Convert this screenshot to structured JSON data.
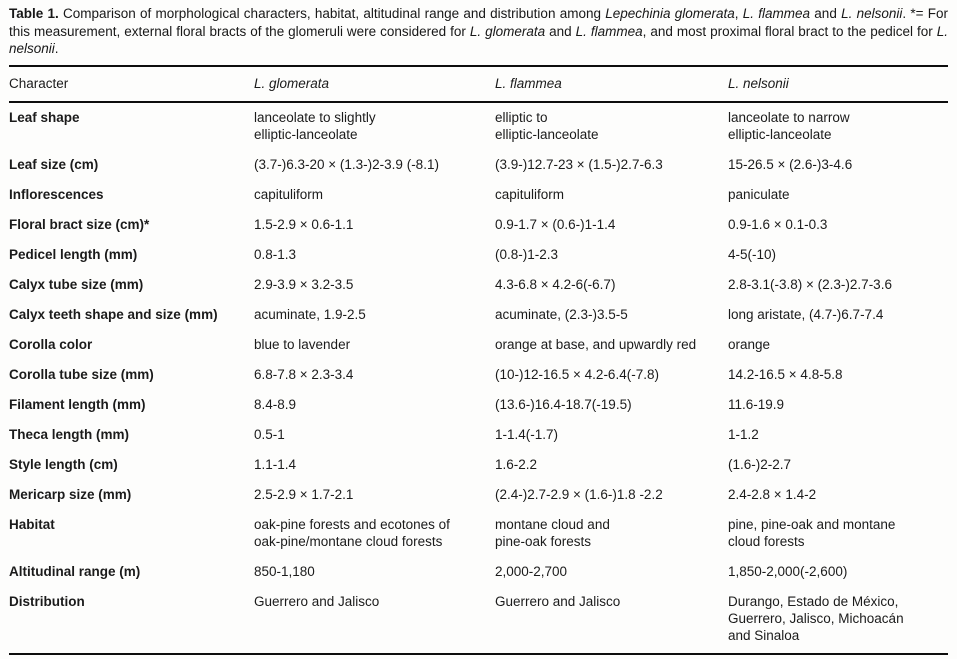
{
  "caption": {
    "label": "Table 1.",
    "intro": " Comparison of morphological characters, habitat, altitudinal range and distribution among ",
    "species1": "Lepechinia glomerata",
    "comma1": ", ",
    "species2": "L. flammea",
    "and1": " and ",
    "species3": "L. nelsonii",
    "note1": ". *= For this measurement, external floral bracts of the glomeruli were considered for ",
    "species4": "L. glomerata",
    "and2": " and ",
    "species5": "L. flammea",
    "note2": ", and most proximal floral bract to the pedicel for ",
    "species6": "L. nelsonii",
    "end": "."
  },
  "table": {
    "headers": {
      "character": "Character",
      "glomerata": "L. glomerata",
      "flammea": "L. flammea",
      "nelsonii": "L. nelsonii"
    },
    "rows": [
      {
        "character": "Leaf shape",
        "glomerata": "lanceolate to slightly\nelliptic-lanceolate",
        "flammea": "elliptic to\nelliptic-lanceolate",
        "nelsonii": "lanceolate to narrow\nelliptic-lanceolate"
      },
      {
        "character": "Leaf size (cm)",
        "glomerata": "(3.7-)6.3-20 × (1.3-)2-3.9 (-8.1)",
        "flammea": "(3.9-)12.7-23 × (1.5-)2.7-6.3",
        "nelsonii": "15-26.5 × (2.6-)3-4.6"
      },
      {
        "character": "Inflorescences",
        "glomerata": "capituliform",
        "flammea": "capituliform",
        "nelsonii": "paniculate"
      },
      {
        "character": "Floral bract size (cm)*",
        "glomerata": "1.5-2.9 × 0.6-1.1",
        "flammea": "0.9-1.7 × (0.6-)1-1.4",
        "nelsonii": "0.9-1.6 × 0.1-0.3"
      },
      {
        "character": "Pedicel length (mm)",
        "glomerata": "0.8-1.3",
        "flammea": "(0.8-)1-2.3",
        "nelsonii": "4-5(-10)"
      },
      {
        "character": "Calyx tube size (mm)",
        "glomerata": "2.9-3.9 × 3.2-3.5",
        "flammea": "4.3-6.8 × 4.2-6(-6.7)",
        "nelsonii": "2.8-3.1(-3.8) × (2.3-)2.7-3.6"
      },
      {
        "character": "Calyx teeth shape and size (mm)",
        "glomerata": "acuminate, 1.9-2.5",
        "flammea": "acuminate, (2.3-)3.5-5",
        "nelsonii": "long aristate, (4.7-)6.7-7.4"
      },
      {
        "character": "Corolla color",
        "glomerata": "blue to lavender",
        "flammea": "orange at base, and upwardly red",
        "nelsonii": "orange"
      },
      {
        "character": "Corolla tube size (mm)",
        "glomerata": "6.8-7.8 × 2.3-3.4",
        "flammea": "(10-)12-16.5 × 4.2-6.4(-7.8)",
        "nelsonii": "14.2-16.5 × 4.8-5.8"
      },
      {
        "character": "Filament length (mm)",
        "glomerata": "8.4-8.9",
        "flammea": "(13.6-)16.4-18.7(-19.5)",
        "nelsonii": "11.6-19.9"
      },
      {
        "character": "Theca length (mm)",
        "glomerata": "0.5-1",
        "flammea": "1-1.4(-1.7)",
        "nelsonii": "1-1.2"
      },
      {
        "character": "Style length (cm)",
        "glomerata": "1.1-1.4",
        "flammea": "1.6-2.2",
        "nelsonii": "(1.6-)2-2.7"
      },
      {
        "character": "Mericarp size (mm)",
        "glomerata": "2.5-2.9 × 1.7-2.1",
        "flammea": "(2.4-)2.7-2.9 × (1.6-)1.8 -2.2",
        "nelsonii": "2.4-2.8 × 1.4-2"
      },
      {
        "character": "Habitat",
        "glomerata": "oak-pine forests and ecotones of\noak-pine/montane cloud forests",
        "flammea": "montane cloud and\npine-oak forests",
        "nelsonii": "pine, pine-oak and montane\ncloud forests"
      },
      {
        "character": "Altitudinal range (m)",
        "glomerata": "850-1,180",
        "flammea": "2,000-2,700",
        "nelsonii": "1,850-2,000(-2,600)"
      },
      {
        "character": "Distribution",
        "glomerata": "Guerrero and Jalisco",
        "flammea": "Guerrero and Jalisco",
        "nelsonii": "Durango, Estado de México,\nGuerrero, Jalisco, Michoacán\nand Sinaloa"
      }
    ]
  }
}
